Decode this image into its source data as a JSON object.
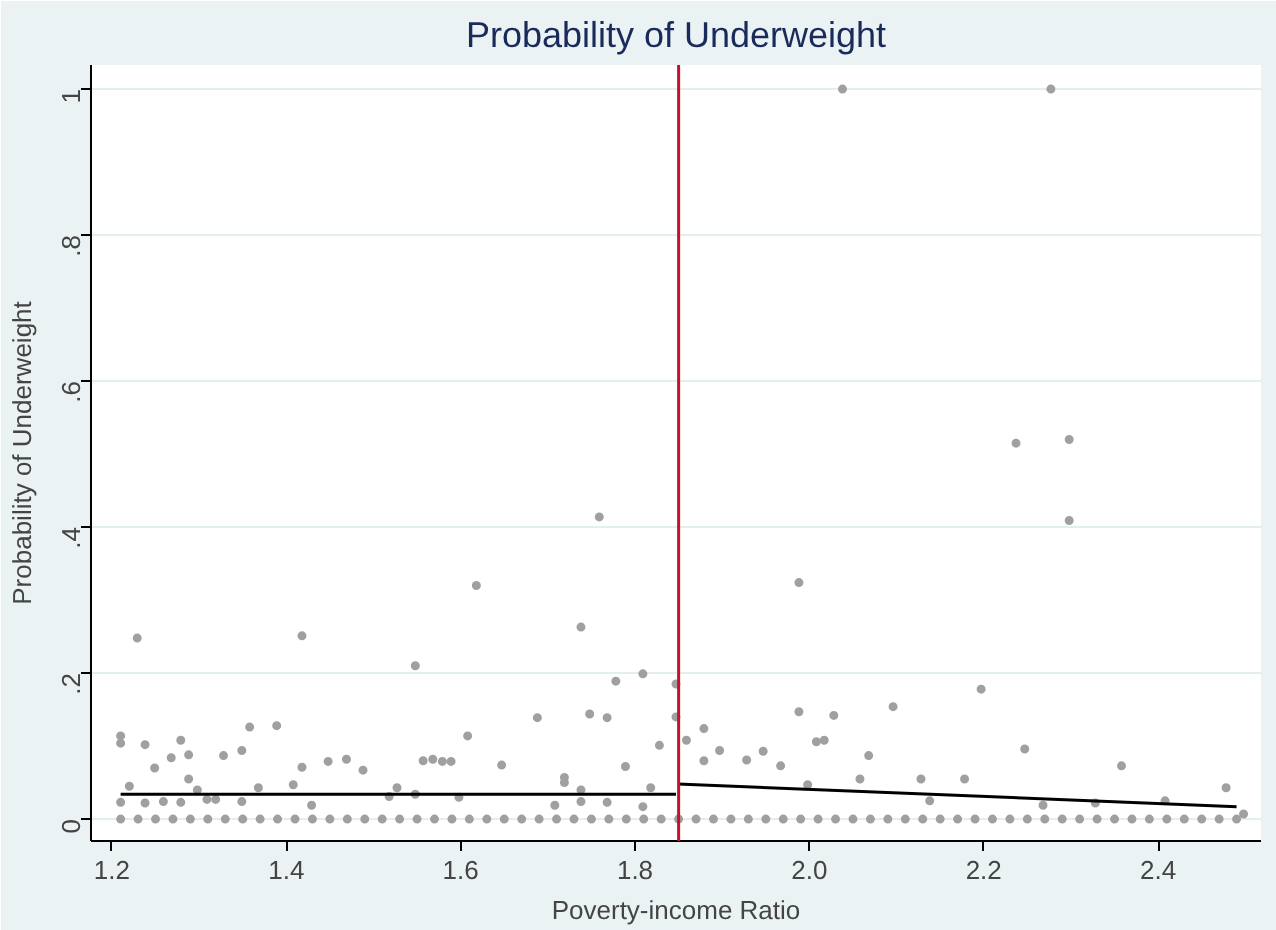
{
  "chart_data": {
    "type": "scatter",
    "title": "Probability of Underweight",
    "xlabel": "Poverty-income Ratio",
    "ylabel": "Probability of Underweight",
    "xlim": [
      1.176,
      2.518
    ],
    "ylim": [
      -0.03,
      1.033
    ],
    "xticks": [
      1.2,
      1.4,
      1.6,
      1.8,
      {
        "value": 2.0,
        "label": "2.0"
      },
      2.2,
      2.4
    ],
    "yticks": [
      0,
      {
        "value": 0.2,
        "label": ".2"
      },
      {
        "value": 0.4,
        "label": ".4"
      },
      {
        "value": 0.6,
        "label": ".6"
      },
      {
        "value": 0.8,
        "label": ".8"
      },
      1
    ],
    "grid": "y",
    "ref_lines": [
      {
        "axis": "x",
        "value": 1.85,
        "color": "#c8102e"
      }
    ],
    "series": [
      {
        "marker": "circle",
        "color": "#a0a0a0",
        "x": [
          1.21,
          1.21,
          1.21,
          1.22,
          1.229,
          1.238,
          1.238,
          1.249,
          1.259,
          1.268,
          1.279,
          1.279,
          1.288,
          1.288,
          1.298,
          1.309,
          1.319,
          1.328,
          1.349,
          1.349,
          1.358,
          1.368,
          1.389,
          1.408,
          1.418,
          1.418,
          1.429,
          1.448,
          1.469,
          1.488,
          1.518,
          1.527,
          1.548,
          1.548,
          1.557,
          1.568,
          1.579,
          1.589,
          1.598,
          1.608,
          1.618,
          1.647,
          1.688,
          1.708,
          1.719,
          1.719,
          1.738,
          1.738,
          1.738,
          1.748,
          1.759,
          1.768,
          1.768,
          1.778,
          1.789,
          1.809,
          1.809,
          1.818,
          1.828,
          1.847,
          1.847,
          1.859,
          1.879,
          1.879,
          1.897,
          1.928,
          1.947,
          1.967,
          1.988,
          1.988,
          1.998,
          2.008,
          2.017,
          2.028,
          2.038,
          2.058,
          2.068,
          2.096,
          2.128,
          2.138,
          2.178,
          2.197,
          2.237,
          2.247,
          2.268,
          2.277,
          2.298,
          2.298,
          2.328,
          2.358,
          2.408,
          2.478,
          2.498
        ],
        "values": [
          0.114,
          0.104,
          0.023,
          0.045,
          0.248,
          0.102,
          0.022,
          0.07,
          0.024,
          0.084,
          0.108,
          0.023,
          0.088,
          0.055,
          0.04,
          0.027,
          0.027,
          0.087,
          0.094,
          0.024,
          0.126,
          0.043,
          0.128,
          0.047,
          0.251,
          0.071,
          0.019,
          0.079,
          0.082,
          0.067,
          0.031,
          0.043,
          0.21,
          0.034,
          0.08,
          0.082,
          0.079,
          0.079,
          0.03,
          0.114,
          0.32,
          0.074,
          0.139,
          0.019,
          0.057,
          0.05,
          0.263,
          0.04,
          0.024,
          0.144,
          0.414,
          0.139,
          0.023,
          0.189,
          0.072,
          0.199,
          0.017,
          0.043,
          0.101,
          0.185,
          0.14,
          0.108,
          0.124,
          0.08,
          0.094,
          0.081,
          0.093,
          0.073,
          0.324,
          0.147,
          0.047,
          0.106,
          0.108,
          0.142,
          1.0,
          0.055,
          0.087,
          0.154,
          0.055,
          0.025,
          0.055,
          0.178,
          0.515,
          0.096,
          0.019,
          1.0,
          0.52,
          0.409,
          0.022,
          0.073,
          0.025,
          0.043,
          0.007
        ]
      },
      {
        "marker": "circle",
        "color": "#a0a0a0",
        "x": [
          1.21,
          1.23,
          1.25,
          1.27,
          1.29,
          1.31,
          1.33,
          1.35,
          1.37,
          1.39,
          1.41,
          1.43,
          1.45,
          1.47,
          1.49,
          1.51,
          1.53,
          1.55,
          1.57,
          1.59,
          1.61,
          1.63,
          1.65,
          1.67,
          1.69,
          1.71,
          1.73,
          1.75,
          1.77,
          1.79,
          1.81,
          1.83,
          1.85,
          1.87,
          1.89,
          1.91,
          1.93,
          1.95,
          1.97,
          1.99,
          2.01,
          2.03,
          2.05,
          2.07,
          2.09,
          2.11,
          2.13,
          2.15,
          2.17,
          2.19,
          2.21,
          2.23,
          2.25,
          2.27,
          2.29,
          2.31,
          2.33,
          2.35,
          2.37,
          2.39,
          2.41,
          2.43,
          2.45,
          2.47,
          2.49
        ],
        "values": [
          0,
          0,
          0,
          0,
          0,
          0,
          0,
          0,
          0,
          0,
          0,
          0,
          0,
          0,
          0,
          0,
          0,
          0,
          0,
          0,
          0,
          0,
          0,
          0,
          0,
          0,
          0,
          0,
          0,
          0,
          0,
          0,
          0,
          0,
          0,
          0,
          0,
          0,
          0,
          0,
          0,
          0,
          0,
          0,
          0,
          0,
          0,
          0,
          0,
          0,
          0,
          0,
          0,
          0,
          0,
          0,
          0,
          0,
          0,
          0,
          0,
          0,
          0,
          0,
          0
        ]
      },
      {
        "type": "line",
        "marker": "none",
        "color": "#000000",
        "x": [
          1.21,
          1.847
        ],
        "values": [
          0.034,
          0.034
        ]
      },
      {
        "type": "line",
        "marker": "none",
        "color": "#000000",
        "x": [
          1.849,
          2.49
        ],
        "values": [
          0.048,
          0.017
        ]
      }
    ]
  }
}
